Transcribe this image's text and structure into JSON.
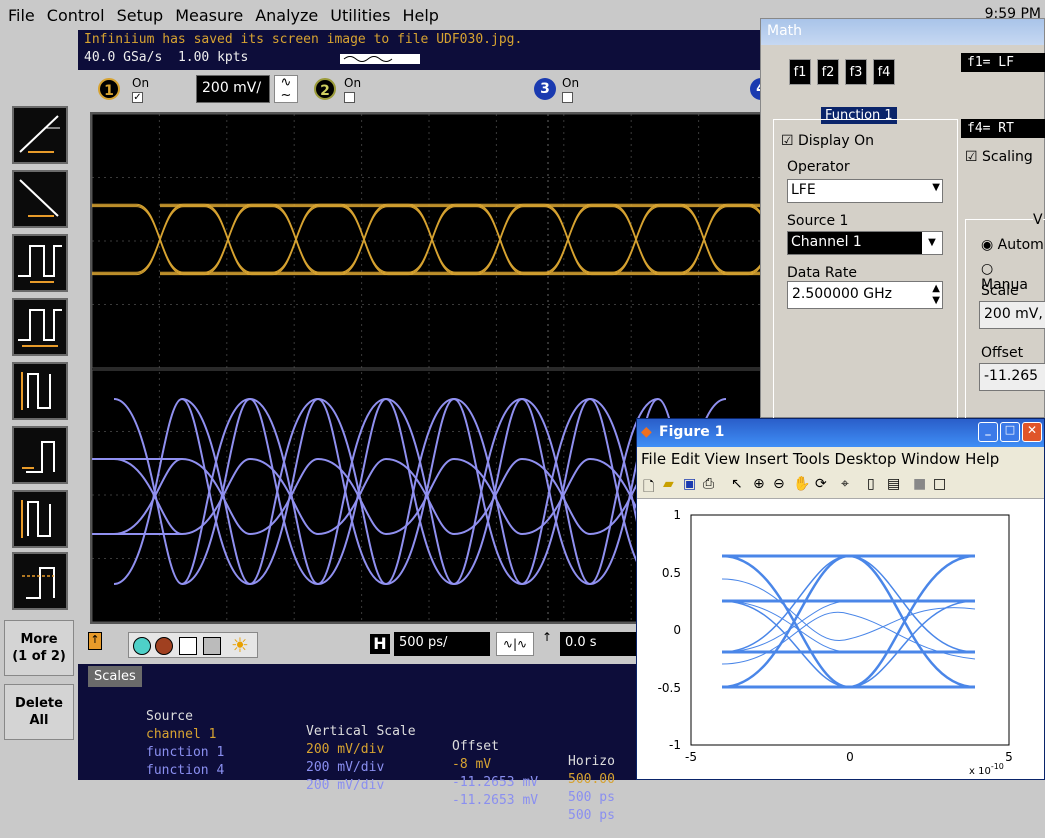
{
  "menu": {
    "items": [
      "File",
      "Control",
      "Setup",
      "Measure",
      "Analyze",
      "Utilities",
      "Help"
    ],
    "clock": "9:59 PM"
  },
  "status": {
    "message": "Infiniium has saved its screen image to file UDF030.jpg.",
    "sample_rate": "40.0 GSa/s",
    "points": "1.00 kpts"
  },
  "channels": {
    "ch1_label": "1",
    "ch1_on": "On",
    "ch1_scale": "200 mV/",
    "ch2_label": "2",
    "ch2_on": "On",
    "ch3_label": "3",
    "ch3_on": "On",
    "ch4_label": "4"
  },
  "side": {
    "more_label_1": "More",
    "more_label_2": "(1 of 2)",
    "delete_label_1": "Delete",
    "delete_label_2": "All"
  },
  "bottom": {
    "time_scale": "500 ps/",
    "time_offset": "0.0 s",
    "h_label": "H"
  },
  "scales": {
    "tab": "Scales",
    "headers": [
      "Source",
      "Vertical Scale",
      "Offset",
      "Horizo"
    ],
    "rows": [
      {
        "source": "channel 1",
        "vscale": "200 mV/div",
        "offset": "-8 mV",
        "hscale": "500.00",
        "color": "#d7a331"
      },
      {
        "source": "function 1",
        "vscale": "200 mV/div",
        "offset": "-11.2653 mV",
        "hscale": "500 ps",
        "color": "#8a8ff0"
      },
      {
        "source": "function 4",
        "vscale": "200 mV/div",
        "offset": "-11.2653 mV",
        "hscale": "500 ps",
        "color": "#8a8ff0"
      }
    ]
  },
  "math": {
    "title": "Math",
    "fbuttons": [
      "f1",
      "f2",
      "f3",
      "f4"
    ],
    "f1_expr": "f1=    LF",
    "f4_expr": "f4=    RT",
    "function_label": "Function 1",
    "display_on": "Display On",
    "operator_label": "Operator",
    "operator_value": "LFE",
    "source_label": "Source 1",
    "source_value": "Channel 1",
    "datarate_label": "Data Rate",
    "datarate_value": "2.500000 GHz",
    "scaling": "Scaling",
    "v_label": "V",
    "auto": "Autom",
    "manual": "Manua",
    "scale_label": "Scale",
    "scale_value": "200 mV,",
    "offset_label": "Offset",
    "offset_value": "-11.265"
  },
  "figure": {
    "title": "Figure 1",
    "menu": "File Edit View Insert Tools Desktop Window Help",
    "yticks": [
      "1",
      "0.5",
      "0",
      "-0.5",
      "-1"
    ],
    "xticks": [
      "-5",
      "0",
      "5"
    ],
    "xexp": "x 10",
    "xexp_sup": "-10"
  },
  "colors": {
    "ch1": "#d7a331",
    "func": "#9090f0",
    "matlab": "#4a86e8"
  }
}
